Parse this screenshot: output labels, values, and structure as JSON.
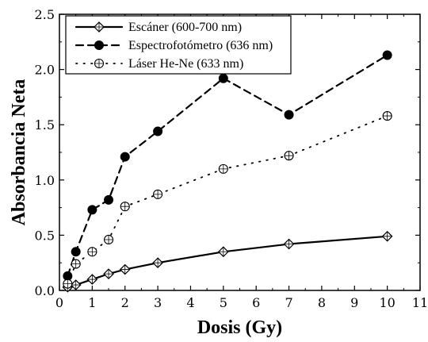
{
  "chart_data": {
    "type": "line",
    "xlabel": "Dosis (Gy)",
    "ylabel": "Absorbancia Neta",
    "xlim": [
      0,
      11
    ],
    "ylim": [
      0,
      2.5
    ],
    "xticks": [
      "0",
      "1",
      "2",
      "3",
      "4",
      "5",
      "6",
      "7",
      "8",
      "9",
      "10",
      "11"
    ],
    "yticks": [
      "0.0",
      "0.5",
      "1.0",
      "1.5",
      "2.0",
      "2.5"
    ],
    "grid": false,
    "legend_position": "top-left",
    "series": [
      {
        "name": "Escáner (600-700 nm)",
        "line_style": "solid",
        "marker": "open-diamond",
        "x": [
          0.25,
          0.5,
          1,
          1.5,
          2,
          3,
          5,
          7,
          10
        ],
        "y": [
          0.03,
          0.05,
          0.1,
          0.15,
          0.19,
          0.25,
          0.35,
          0.42,
          0.49
        ]
      },
      {
        "name": "Espectrofotómetro (636 nm)",
        "line_style": "dashed",
        "marker": "filled-circle",
        "x": [
          0.25,
          0.5,
          1,
          1.5,
          2,
          3,
          5,
          7,
          10
        ],
        "y": [
          0.13,
          0.35,
          0.73,
          0.82,
          1.21,
          1.44,
          1.92,
          1.59,
          2.13
        ]
      },
      {
        "name": "Láser He-Ne (633 nm)",
        "line_style": "dotted",
        "marker": "open-circle-cross",
        "x": [
          0.25,
          0.5,
          1,
          1.5,
          2,
          3,
          5,
          7,
          10
        ],
        "y": [
          0.06,
          0.24,
          0.35,
          0.46,
          0.76,
          0.87,
          1.1,
          1.22,
          1.58
        ]
      }
    ]
  }
}
